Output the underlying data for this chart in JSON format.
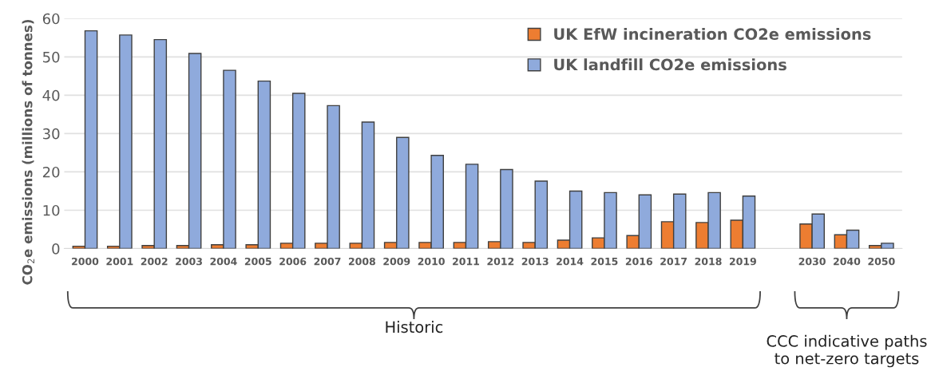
{
  "chart_data": {
    "type": "bar",
    "ylabel": "CO$_{2}$e emissions (millions of tonnes)",
    "categories": [
      "2000",
      "2001",
      "2002",
      "2003",
      "2004",
      "2005",
      "2006",
      "2007",
      "2008",
      "2009",
      "2010",
      "2011",
      "2012",
      "2013",
      "2014",
      "2015",
      "2016",
      "2017",
      "2018",
      "2019",
      null,
      "2030",
      "2040",
      "2050"
    ],
    "series": [
      {
        "name": "UK EfW incineration CO2e emissions",
        "color": "#ed7d31",
        "values": [
          0.6,
          0.6,
          0.8,
          0.8,
          1.0,
          1.0,
          1.4,
          1.4,
          1.4,
          1.6,
          1.6,
          1.6,
          1.8,
          1.6,
          2.2,
          2.8,
          3.4,
          7.0,
          6.8,
          7.4,
          null,
          6.4,
          3.6,
          0.8
        ]
      },
      {
        "name": "UK landfill CO2e emissions",
        "color": "#8faadc",
        "values": [
          56.8,
          55.7,
          54.5,
          50.9,
          46.5,
          43.7,
          40.5,
          37.3,
          33.0,
          29.0,
          24.3,
          22.0,
          20.6,
          17.6,
          15.0,
          14.6,
          14.0,
          14.2,
          14.6,
          13.7,
          null,
          9.0,
          4.8,
          1.4
        ]
      }
    ],
    "ylim": [
      0,
      60
    ],
    "yticks": [
      0,
      10,
      20,
      30,
      40,
      50,
      60
    ],
    "grid": "y",
    "legend": "top right",
    "annotations": [
      "Historic",
      "CCC indicative paths\nto net-zero targets"
    ]
  }
}
